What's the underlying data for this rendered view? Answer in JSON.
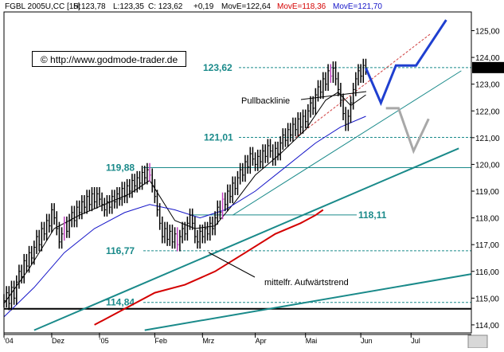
{
  "header": {
    "symbol": "FGBL 2005U,CC [15]",
    "high": "H:123,78",
    "low": "L:123,35",
    "close": "C: 123,62",
    "change": "+0,19",
    "ma1": "MovE=122,64",
    "ma2": "MovE=118,36",
    "ma3": "MovE=121,70"
  },
  "copyright": "© http://www.godmode-trader.de",
  "colors": {
    "price": "#000000",
    "ma_fast": "#000000",
    "ma_mid": "#1515c8",
    "ma_slow": "#d40000",
    "levels": "#1a8a8a",
    "trend": "#1a8a8a",
    "projection": "#1f3fd0",
    "projection_alt": "#a8a8a8",
    "highlight": "#c040c0"
  },
  "chart_data": {
    "type": "line",
    "title": "",
    "xlabel": "",
    "ylabel": "",
    "ylim": [
      113.7,
      125.7
    ],
    "y_ticks": [
      114,
      115,
      116,
      117,
      118,
      119,
      120,
      121,
      122,
      123,
      124,
      125
    ],
    "y_tick_labels": [
      "114,00",
      "115,00",
      "116,00",
      "117,00",
      "118,00",
      "119,00",
      "120,00",
      "121,00",
      "122,00",
      "123,00",
      "124,00",
      "125,00"
    ],
    "current_price_label": "123,62",
    "x_months": [
      {
        "label": "'04",
        "x": 0
      },
      {
        "label": "Dez",
        "x": 19
      },
      {
        "label": "'05",
        "x": 38
      },
      {
        "label": "Feb",
        "x": 60
      },
      {
        "label": "Mrz",
        "x": 79
      },
      {
        "label": "Apr",
        "x": 100
      },
      {
        "label": "Mai",
        "x": 120
      },
      {
        "label": "Jun",
        "x": 142
      },
      {
        "label": "Jul",
        "x": 162
      }
    ],
    "xlim": [
      0,
      186
    ],
    "series": [
      {
        "role": "price",
        "values": [
          [
            0,
            114.9
          ],
          [
            1,
            115.2
          ],
          [
            2,
            114.8
          ],
          [
            3,
            115.4
          ],
          [
            4,
            115.0
          ],
          [
            5,
            115.6
          ],
          [
            6,
            116.0
          ],
          [
            7,
            115.8
          ],
          [
            8,
            116.4
          ],
          [
            9,
            116.2
          ],
          [
            10,
            116.7
          ],
          [
            11,
            116.5
          ],
          [
            12,
            116.9
          ],
          [
            13,
            117.3
          ],
          [
            14,
            117.0
          ],
          [
            15,
            117.6
          ],
          [
            16,
            117.4
          ],
          [
            17,
            117.9
          ],
          [
            18,
            117.7
          ],
          [
            19,
            118.3
          ],
          [
            20,
            118.0
          ],
          [
            21,
            117.6
          ],
          [
            22,
            117.1
          ],
          [
            23,
            117.4
          ],
          [
            24,
            117.8
          ],
          [
            25,
            117.5
          ],
          [
            26,
            117.9
          ],
          [
            27,
            118.2
          ],
          [
            28,
            117.9
          ],
          [
            29,
            118.4
          ],
          [
            30,
            118.2
          ],
          [
            31,
            118.6
          ],
          [
            32,
            118.4
          ],
          [
            33,
            118.8
          ],
          [
            34,
            118.5
          ],
          [
            35,
            118.9
          ],
          [
            36,
            118.6
          ],
          [
            37,
            118.9
          ],
          [
            38,
            118.7
          ],
          [
            39,
            118.5
          ],
          [
            40,
            118.3
          ],
          [
            41,
            118.6
          ],
          [
            42,
            118.4
          ],
          [
            43,
            118.8
          ],
          [
            44,
            118.6
          ],
          [
            45,
            118.9
          ],
          [
            46,
            118.7
          ],
          [
            47,
            119.1
          ],
          [
            48,
            118.8
          ],
          [
            49,
            119.2
          ],
          [
            50,
            119.0
          ],
          [
            51,
            119.4
          ],
          [
            52,
            119.2
          ],
          [
            53,
            119.5
          ],
          [
            54,
            119.3
          ],
          [
            55,
            119.7
          ],
          [
            56,
            119.5
          ],
          [
            57,
            119.8
          ],
          [
            58,
            119.6
          ],
          [
            59,
            119.2
          ],
          [
            60,
            118.8
          ],
          [
            61,
            118.3
          ],
          [
            62,
            117.8
          ],
          [
            63,
            117.3
          ],
          [
            64,
            117.6
          ],
          [
            65,
            117.2
          ],
          [
            66,
            117.5
          ],
          [
            67,
            117.1
          ],
          [
            68,
            117.4
          ],
          [
            69,
            117.0
          ],
          [
            70,
            117.3
          ],
          [
            71,
            117.6
          ],
          [
            72,
            117.4
          ],
          [
            73,
            117.8
          ],
          [
            74,
            118.1
          ],
          [
            75,
            117.8
          ],
          [
            76,
            117.3
          ],
          [
            77,
            117.1
          ],
          [
            78,
            117.5
          ],
          [
            79,
            117.3
          ],
          [
            80,
            117.6
          ],
          [
            81,
            117.4
          ],
          [
            82,
            117.8
          ],
          [
            83,
            117.6
          ],
          [
            84,
            118.0
          ],
          [
            85,
            118.4
          ],
          [
            86,
            118.2
          ],
          [
            87,
            118.7
          ],
          [
            88,
            118.5
          ],
          [
            89,
            119.0
          ],
          [
            90,
            118.8
          ],
          [
            91,
            119.3
          ],
          [
            92,
            119.1
          ],
          [
            93,
            119.5
          ],
          [
            94,
            119.8
          ],
          [
            95,
            119.6
          ],
          [
            96,
            120.1
          ],
          [
            97,
            119.9
          ],
          [
            98,
            120.4
          ],
          [
            99,
            120.2
          ],
          [
            100,
            120.0
          ],
          [
            101,
            120.3
          ],
          [
            102,
            120.1
          ],
          [
            103,
            120.5
          ],
          [
            104,
            120.3
          ],
          [
            105,
            120.7
          ],
          [
            106,
            120.5
          ],
          [
            107,
            120.2
          ],
          [
            108,
            120.6
          ],
          [
            109,
            120.4
          ],
          [
            110,
            120.8
          ],
          [
            111,
            121.1
          ],
          [
            112,
            120.9
          ],
          [
            113,
            121.3
          ],
          [
            114,
            121.1
          ],
          [
            115,
            121.5
          ],
          [
            116,
            121.3
          ],
          [
            117,
            121.7
          ],
          [
            118,
            121.4
          ],
          [
            119,
            121.8
          ],
          [
            120,
            121.6
          ],
          [
            121,
            122.0
          ],
          [
            122,
            122.3
          ],
          [
            123,
            122.1
          ],
          [
            124,
            122.6
          ],
          [
            125,
            122.9
          ],
          [
            126,
            122.7
          ],
          [
            127,
            123.2
          ],
          [
            128,
            123.0
          ],
          [
            129,
            123.5
          ],
          [
            130,
            123.3
          ],
          [
            131,
            123.6
          ],
          [
            132,
            123.2
          ],
          [
            133,
            122.8
          ],
          [
            134,
            122.4
          ],
          [
            135,
            121.9
          ],
          [
            136,
            121.5
          ],
          [
            137,
            121.8
          ],
          [
            138,
            122.3
          ],
          [
            139,
            122.8
          ],
          [
            140,
            123.2
          ],
          [
            141,
            123.5
          ],
          [
            142,
            123.3
          ],
          [
            143,
            123.7
          ],
          [
            144,
            123.6
          ]
        ]
      },
      {
        "role": "ma_fast",
        "values": [
          [
            0,
            114.8
          ],
          [
            10,
            116.1
          ],
          [
            20,
            117.6
          ],
          [
            30,
            118.1
          ],
          [
            40,
            118.5
          ],
          [
            50,
            118.9
          ],
          [
            58,
            119.4
          ],
          [
            62,
            118.8
          ],
          [
            68,
            117.9
          ],
          [
            76,
            117.6
          ],
          [
            84,
            117.7
          ],
          [
            92,
            118.6
          ],
          [
            100,
            119.6
          ],
          [
            110,
            120.4
          ],
          [
            120,
            121.3
          ],
          [
            128,
            122.4
          ],
          [
            133,
            122.7
          ],
          [
            138,
            122.2
          ],
          [
            144,
            122.6
          ]
        ]
      },
      {
        "role": "ma_mid",
        "values": [
          [
            0,
            114.3
          ],
          [
            12,
            115.4
          ],
          [
            24,
            116.7
          ],
          [
            36,
            117.6
          ],
          [
            48,
            118.2
          ],
          [
            58,
            118.5
          ],
          [
            68,
            118.3
          ],
          [
            78,
            118.0
          ],
          [
            88,
            118.3
          ],
          [
            100,
            119.0
          ],
          [
            112,
            119.9
          ],
          [
            124,
            120.8
          ],
          [
            134,
            121.4
          ],
          [
            144,
            121.8
          ]
        ]
      },
      {
        "role": "ma_slow",
        "values": [
          [
            36,
            114.0
          ],
          [
            48,
            114.6
          ],
          [
            60,
            115.2
          ],
          [
            72,
            115.5
          ],
          [
            84,
            116.0
          ],
          [
            96,
            116.7
          ],
          [
            108,
            117.4
          ],
          [
            118,
            117.8
          ],
          [
            124,
            118.1
          ],
          [
            127,
            118.3
          ]
        ]
      }
    ],
    "levels": [
      {
        "value": 123.62,
        "label": "123,62"
      },
      {
        "value": 121.01,
        "label": "121,01"
      },
      {
        "value": 119.88,
        "label": "119,88"
      },
      {
        "value": 118.11,
        "label": "118,11"
      },
      {
        "value": 116.77,
        "label": "116,77"
      },
      {
        "value": 114.84,
        "label": "114,84"
      }
    ],
    "annotations": [
      {
        "text": "Pullbacklinie"
      },
      {
        "text": "mittelfr. Aufwärtstrend"
      }
    ]
  }
}
